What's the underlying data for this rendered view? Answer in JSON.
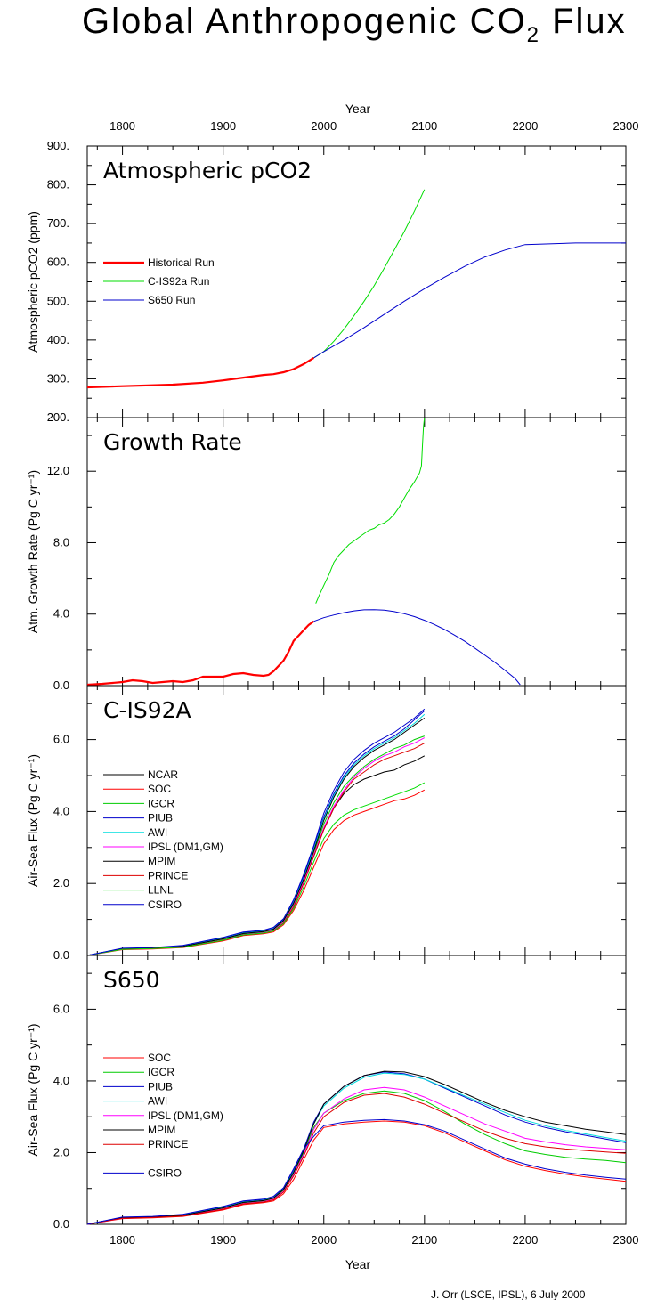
{
  "title": {
    "main": "Global Anthropogenic CO",
    "subscript": "2",
    "suffix": " Flux"
  },
  "credit": "J. Orr (LSCE, IPSL), 6 July 2000",
  "colors": {
    "historical": "#ff0000",
    "cis92a": "#00dd00",
    "s650": "#0000cc",
    "NCAR": "#000000",
    "SOC": "#ff0000",
    "IGCR": "#00cc00",
    "PIUB": "#0000cc",
    "AWI": "#00dddd",
    "IPSL": "#ff00ff",
    "MPIM": "#000000",
    "PRINCE": "#dd0000",
    "LLNL": "#00dd00",
    "CSIRO": "#0000cc"
  },
  "chart_data": [
    {
      "type": "line",
      "title": "Atmospheric pCO2",
      "xlabel_top": "Year",
      "ylabel": "Atmospheric pCO2 (ppm)",
      "xlim": [
        1765,
        2300
      ],
      "ylim": [
        200,
        900
      ],
      "xticks": [
        "1800",
        "1900",
        "2000",
        "2100",
        "2200",
        "2300"
      ],
      "yticks": [
        "200.",
        "300.",
        "400.",
        "500.",
        "600.",
        "700.",
        "800.",
        "900."
      ],
      "legend_position": "left",
      "series": [
        {
          "name": "Historical Run",
          "key": "historical",
          "width": 2.2,
          "x": [
            1765,
            1800,
            1850,
            1880,
            1900,
            1920,
            1940,
            1950,
            1960,
            1970,
            1980,
            1990
          ],
          "y": [
            278,
            281,
            285,
            290,
            296,
            303,
            310,
            312,
            317,
            325,
            338,
            354
          ]
        },
        {
          "name": "C-IS92a Run",
          "key": "cis92a",
          "width": 1,
          "x": [
            1990,
            2000,
            2010,
            2020,
            2030,
            2040,
            2050,
            2060,
            2070,
            2080,
            2090,
            2100
          ],
          "y": [
            354,
            370,
            397,
            428,
            463,
            500,
            540,
            585,
            632,
            680,
            732,
            788
          ]
        },
        {
          "name": "S650 Run",
          "key": "s650",
          "width": 1,
          "x": [
            1990,
            2000,
            2020,
            2040,
            2060,
            2080,
            2100,
            2120,
            2140,
            2160,
            2180,
            2200,
            2250,
            2300
          ],
          "y": [
            354,
            370,
            400,
            432,
            466,
            500,
            532,
            562,
            590,
            614,
            632,
            646,
            650,
            650
          ]
        }
      ]
    },
    {
      "type": "line",
      "title": "Growth Rate",
      "ylabel": "Atm. Growth Rate (Pg C yr⁻¹)",
      "xlim": [
        1765,
        2300
      ],
      "ylim": [
        0,
        15
      ],
      "yticks": [
        "0.0",
        "4.0",
        "8.0",
        "12.0"
      ],
      "series": [
        {
          "key": "historical",
          "width": 2.2,
          "x": [
            1765,
            1780,
            1800,
            1810,
            1820,
            1830,
            1840,
            1850,
            1860,
            1870,
            1880,
            1890,
            1900,
            1910,
            1920,
            1930,
            1940,
            1945,
            1950,
            1955,
            1960,
            1965,
            1970,
            1975,
            1980,
            1985,
            1990
          ],
          "y": [
            0.05,
            0.1,
            0.2,
            0.3,
            0.25,
            0.15,
            0.2,
            0.25,
            0.2,
            0.3,
            0.5,
            0.5,
            0.5,
            0.65,
            0.7,
            0.6,
            0.55,
            0.6,
            0.8,
            1.1,
            1.4,
            1.9,
            2.5,
            2.8,
            3.1,
            3.4,
            3.6
          ]
        },
        {
          "key": "cis92a",
          "width": 1,
          "x": [
            1992,
            1995,
            2000,
            2005,
            2010,
            2015,
            2020,
            2025,
            2030,
            2035,
            2040,
            2045,
            2050,
            2055,
            2060,
            2065,
            2070,
            2075,
            2080,
            2085,
            2090,
            2095,
            2097,
            2098,
            2099,
            2100
          ],
          "y": [
            4.6,
            5.0,
            5.6,
            6.2,
            6.9,
            7.3,
            7.6,
            7.9,
            8.1,
            8.3,
            8.5,
            8.7,
            8.8,
            9.0,
            9.1,
            9.3,
            9.6,
            10.0,
            10.5,
            11.0,
            11.4,
            11.9,
            12.3,
            13.5,
            14.5,
            15
          ]
        },
        {
          "key": "s650",
          "width": 1,
          "x": [
            1990,
            2000,
            2010,
            2020,
            2030,
            2040,
            2050,
            2060,
            2070,
            2080,
            2090,
            2100,
            2110,
            2120,
            2130,
            2140,
            2150,
            2160,
            2170,
            2180,
            2190,
            2195
          ],
          "y": [
            3.6,
            3.8,
            3.95,
            4.08,
            4.18,
            4.24,
            4.25,
            4.22,
            4.14,
            4.02,
            3.86,
            3.66,
            3.42,
            3.14,
            2.82,
            2.48,
            2.1,
            1.7,
            1.3,
            0.85,
            0.4,
            0.05
          ]
        }
      ]
    },
    {
      "type": "line",
      "title": "C-IS92A",
      "ylabel": "Air-Sea Flux (Pg C yr⁻¹)",
      "xlim": [
        1765,
        2300
      ],
      "ylim": [
        0,
        7.5
      ],
      "yticks": [
        "0.0",
        "2.0",
        "4.0",
        "6.0"
      ],
      "legend_position": "left",
      "x": [
        1765,
        1800,
        1830,
        1860,
        1900,
        1920,
        1940,
        1950,
        1960,
        1970,
        1980,
        1990,
        2000,
        2010,
        2020,
        2030,
        2040,
        2050,
        2060,
        2070,
        2080,
        2090,
        2100
      ],
      "series": [
        {
          "name": "NCAR",
          "key": "NCAR",
          "y": [
            0,
            0.18,
            0.2,
            0.25,
            0.45,
            0.6,
            0.65,
            0.72,
            0.95,
            1.4,
            2.05,
            2.75,
            3.5,
            4.1,
            4.5,
            4.75,
            4.9,
            5.0,
            5.1,
            5.15,
            5.3,
            5.4,
            5.55
          ]
        },
        {
          "name": "SOC",
          "key": "SOC",
          "y": [
            0,
            0.16,
            0.18,
            0.22,
            0.4,
            0.55,
            0.6,
            0.65,
            0.85,
            1.25,
            1.8,
            2.45,
            3.1,
            3.5,
            3.75,
            3.9,
            4.0,
            4.1,
            4.2,
            4.3,
            4.35,
            4.45,
            4.6
          ]
        },
        {
          "name": "IGCR",
          "key": "IGCR",
          "y": [
            0,
            0.18,
            0.2,
            0.25,
            0.45,
            0.6,
            0.65,
            0.72,
            0.95,
            1.4,
            2.1,
            2.85,
            3.65,
            4.25,
            4.7,
            5.0,
            5.25,
            5.45,
            5.6,
            5.75,
            5.85,
            6.0,
            6.1
          ]
        },
        {
          "name": "PIUB",
          "key": "PIUB",
          "y": [
            0,
            0.19,
            0.21,
            0.27,
            0.48,
            0.63,
            0.68,
            0.75,
            1.0,
            1.5,
            2.2,
            3.0,
            3.85,
            4.5,
            5.0,
            5.35,
            5.6,
            5.8,
            5.95,
            6.1,
            6.3,
            6.55,
            6.8
          ]
        },
        {
          "name": "AWI",
          "key": "AWI",
          "y": [
            0,
            0.19,
            0.21,
            0.26,
            0.47,
            0.62,
            0.67,
            0.74,
            0.98,
            1.47,
            2.15,
            2.95,
            3.8,
            4.45,
            4.95,
            5.3,
            5.55,
            5.75,
            5.9,
            6.05,
            6.25,
            6.45,
            6.7
          ]
        },
        {
          "name": "IPSL (DM1,GM)",
          "key": "IPSL",
          "y": [
            0,
            0.17,
            0.2,
            0.24,
            0.43,
            0.58,
            0.63,
            0.7,
            0.92,
            1.38,
            2.05,
            2.8,
            3.55,
            4.15,
            4.6,
            4.95,
            5.2,
            5.4,
            5.55,
            5.65,
            5.8,
            5.9,
            6.05
          ]
        },
        {
          "name": "MPIM",
          "key": "MPIM",
          "y": [
            0,
            0.18,
            0.2,
            0.25,
            0.46,
            0.61,
            0.66,
            0.73,
            0.97,
            1.45,
            2.12,
            2.9,
            3.75,
            4.4,
            4.9,
            5.25,
            5.5,
            5.7,
            5.85,
            6.0,
            6.2,
            6.4,
            6.6
          ]
        },
        {
          "name": "PRINCE",
          "key": "PRINCE",
          "y": [
            0,
            0.17,
            0.19,
            0.23,
            0.42,
            0.57,
            0.62,
            0.68,
            0.9,
            1.35,
            2.0,
            2.75,
            3.5,
            4.1,
            4.55,
            4.9,
            5.1,
            5.3,
            5.45,
            5.55,
            5.65,
            5.75,
            5.9
          ]
        },
        {
          "name": "LLNL",
          "key": "LLNL",
          "y": [
            0,
            0.17,
            0.19,
            0.23,
            0.42,
            0.57,
            0.62,
            0.68,
            0.88,
            1.3,
            1.9,
            2.6,
            3.25,
            3.65,
            3.9,
            4.05,
            4.15,
            4.25,
            4.35,
            4.45,
            4.55,
            4.65,
            4.8
          ]
        },
        {
          "name": "CSIRO",
          "key": "CSIRO",
          "y": [
            0,
            0.2,
            0.22,
            0.28,
            0.5,
            0.65,
            0.7,
            0.78,
            1.02,
            1.55,
            2.25,
            3.05,
            3.95,
            4.6,
            5.1,
            5.45,
            5.7,
            5.9,
            6.05,
            6.2,
            6.4,
            6.6,
            6.85
          ]
        }
      ]
    },
    {
      "type": "line",
      "title": "S650",
      "xlabel": "Year",
      "ylabel": "Air-Sea Flux (Pg C yr⁻¹)",
      "xlim": [
        1765,
        2300
      ],
      "ylim": [
        0,
        7.5
      ],
      "yticks": [
        "0.0",
        "2.0",
        "4.0",
        "6.0"
      ],
      "legend_position": "left",
      "x": [
        1765,
        1800,
        1830,
        1860,
        1900,
        1920,
        1940,
        1950,
        1960,
        1970,
        1980,
        1990,
        2000,
        2020,
        2040,
        2060,
        2080,
        2100,
        2120,
        2140,
        2160,
        2180,
        2200,
        2220,
        2240,
        2260,
        2280,
        2300
      ],
      "series": [
        {
          "name": "SOC",
          "key": "SOC",
          "y": [
            0,
            0.16,
            0.18,
            0.22,
            0.4,
            0.55,
            0.6,
            0.65,
            0.85,
            1.25,
            1.8,
            2.35,
            2.7,
            2.8,
            2.85,
            2.88,
            2.85,
            2.75,
            2.55,
            2.3,
            2.05,
            1.8,
            1.62,
            1.5,
            1.4,
            1.32,
            1.26,
            1.2
          ]
        },
        {
          "name": "IGCR",
          "key": "IGCR",
          "y": [
            0,
            0.18,
            0.2,
            0.25,
            0.45,
            0.6,
            0.65,
            0.72,
            0.95,
            1.4,
            2.0,
            2.7,
            3.1,
            3.45,
            3.65,
            3.72,
            3.65,
            3.45,
            3.15,
            2.8,
            2.5,
            2.25,
            2.05,
            1.95,
            1.87,
            1.82,
            1.78,
            1.72
          ]
        },
        {
          "name": "PIUB",
          "key": "PIUB",
          "y": [
            0,
            0.19,
            0.21,
            0.27,
            0.48,
            0.63,
            0.68,
            0.75,
            1.0,
            1.5,
            2.1,
            2.85,
            3.35,
            3.85,
            4.15,
            4.25,
            4.2,
            4.05,
            3.8,
            3.55,
            3.3,
            3.05,
            2.85,
            2.7,
            2.58,
            2.48,
            2.38,
            2.28
          ]
        },
        {
          "name": "AWI",
          "key": "AWI",
          "y": [
            0,
            0.19,
            0.21,
            0.26,
            0.47,
            0.62,
            0.67,
            0.74,
            0.98,
            1.47,
            2.05,
            2.8,
            3.3,
            3.8,
            4.1,
            4.22,
            4.18,
            4.05,
            3.82,
            3.58,
            3.35,
            3.12,
            2.9,
            2.75,
            2.62,
            2.52,
            2.42,
            2.32
          ]
        },
        {
          "name": "IPSL (DM1,GM)",
          "key": "IPSL",
          "y": [
            0,
            0.17,
            0.2,
            0.24,
            0.43,
            0.58,
            0.63,
            0.7,
            0.92,
            1.38,
            1.95,
            2.65,
            3.1,
            3.5,
            3.75,
            3.82,
            3.75,
            3.55,
            3.3,
            3.05,
            2.8,
            2.6,
            2.4,
            2.3,
            2.22,
            2.16,
            2.12,
            2.08
          ]
        },
        {
          "name": "MPIM",
          "key": "MPIM",
          "y": [
            0,
            0.18,
            0.2,
            0.25,
            0.46,
            0.61,
            0.66,
            0.73,
            0.97,
            1.45,
            2.05,
            2.8,
            3.35,
            3.85,
            4.15,
            4.27,
            4.25,
            4.12,
            3.9,
            3.65,
            3.4,
            3.18,
            3.0,
            2.85,
            2.75,
            2.65,
            2.58,
            2.5
          ]
        },
        {
          "name": "PRINCE",
          "key": "PRINCE",
          "y": [
            0,
            0.17,
            0.19,
            0.23,
            0.42,
            0.57,
            0.62,
            0.68,
            0.9,
            1.35,
            1.9,
            2.55,
            3.0,
            3.4,
            3.6,
            3.65,
            3.55,
            3.35,
            3.1,
            2.85,
            2.6,
            2.4,
            2.25,
            2.16,
            2.1,
            2.06,
            2.02,
            1.98
          ]
        },
        {
          "name": "CSIRO",
          "key": "CSIRO",
          "y": [
            0,
            0.2,
            0.22,
            0.28,
            0.5,
            0.65,
            0.7,
            0.78,
            1.02,
            1.55,
            2.1,
            2.45,
            2.75,
            2.85,
            2.9,
            2.92,
            2.88,
            2.78,
            2.6,
            2.35,
            2.1,
            1.85,
            1.68,
            1.55,
            1.45,
            1.37,
            1.31,
            1.26
          ]
        }
      ]
    }
  ]
}
